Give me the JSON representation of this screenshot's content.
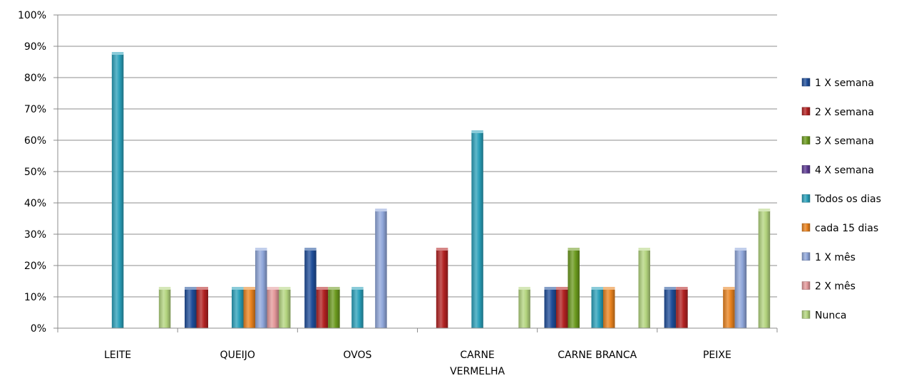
{
  "chart_data": {
    "type": "bar",
    "categories": [
      [
        "LEITE"
      ],
      [
        "QUEIJO"
      ],
      [
        "OVOS"
      ],
      [
        "CARNE",
        "VERMELHA"
      ],
      [
        "CARNE BRANCA"
      ],
      [
        "PEIXE"
      ]
    ],
    "ylim": [
      0,
      1
    ],
    "yticks": [
      "0%",
      "10%",
      "20%",
      "30%",
      "40%",
      "50%",
      "60%",
      "70%",
      "80%",
      "90%",
      "100%"
    ],
    "grid": true,
    "legend_position": "right",
    "series": [
      {
        "name": "1 X semana",
        "color": "#1F4E9A",
        "values": [
          0,
          0.125,
          0.25,
          0,
          0.125,
          0.125
        ]
      },
      {
        "name": "2 X semana",
        "color": "#B22222",
        "values": [
          0,
          0.125,
          0.125,
          0.25,
          0.125,
          0.125
        ]
      },
      {
        "name": "3 X semana",
        "color": "#6B9A1E",
        "values": [
          0,
          0,
          0.125,
          0,
          0.25,
          0
        ]
      },
      {
        "name": "4 X semana",
        "color": "#5C3A92",
        "values": [
          0,
          0,
          0,
          0,
          0,
          0
        ]
      },
      {
        "name": "Todos os dias",
        "color": "#2AA0BA",
        "values": [
          0.875,
          0.125,
          0.125,
          0.625,
          0.125,
          0
        ]
      },
      {
        "name": "cada 15 dias",
        "color": "#E8821E",
        "values": [
          0,
          0.125,
          0,
          0,
          0.125,
          0.125
        ]
      },
      {
        "name": "1 X mês",
        "color": "#8FA6DA",
        "values": [
          0,
          0.25,
          0.375,
          0,
          0,
          0.25
        ]
      },
      {
        "name": "2 X mês",
        "color": "#E3989A",
        "values": [
          0,
          0.125,
          0,
          0,
          0,
          0
        ]
      },
      {
        "name": "Nunca",
        "color": "#B3D47E",
        "values": [
          0.125,
          0.125,
          0,
          0.125,
          0.25,
          0.375
        ]
      }
    ]
  }
}
